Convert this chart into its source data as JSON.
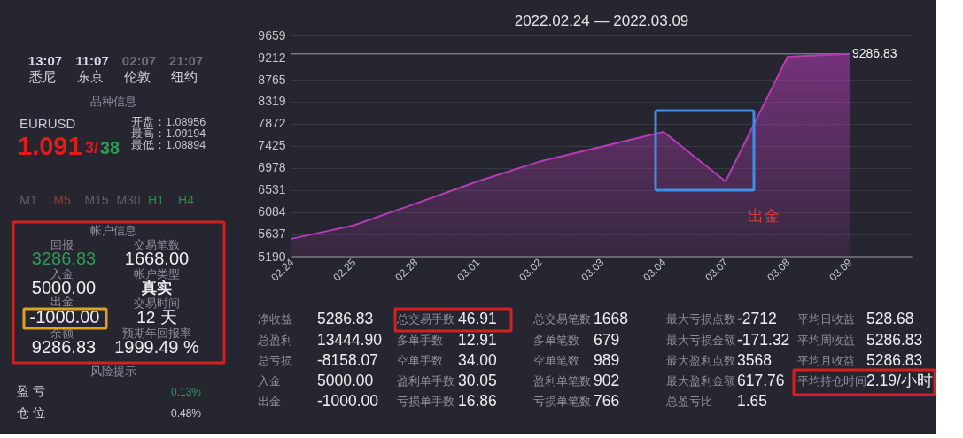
{
  "chart_data": [
    {
      "type": "other",
      "annotations": [
        "13:07",
        "11:07",
        "02:07",
        "21:07",
        "悉尼",
        "东京",
        "伦敦",
        "纽约",
        "品种信息",
        "EURUSD",
        "开盘：1.08956",
        "最高：1.09194",
        "最低：1.08894",
        "1.091",
        "3/",
        "38",
        "M1",
        "M5",
        "M15",
        "M30",
        "H1",
        "H4",
        "帐户信息",
        "回报",
        "3286.83",
        "交易笔数",
        "1668.00",
        "入金",
        "5000.00",
        "帐户类型",
        "真实",
        "出金",
        "-1000.00",
        "交易时间",
        "12 天",
        "余额",
        "9286.83",
        "预期年回报率",
        "1999.49 %",
        "风险提示",
        "盈 亏",
        "0.13%",
        "仓 位",
        "0.48%"
      ]
    },
    {
      "type": "area",
      "title": "2022.02.24 — 2022.03.09",
      "categories": [
        "02.24",
        "02.25",
        "02.28",
        "03.01",
        "03.02",
        "03.03",
        "03.04",
        "03.07",
        "03.08",
        "03.09"
      ],
      "series": [
        {
          "color": "#b43cb4",
          "values": [
            5550,
            5820,
            6260,
            6710,
            7110,
            7410,
            7710,
            6710,
            9230,
            9286.83
          ],
          "value_labels": [
            null,
            null,
            null,
            null,
            null,
            null,
            null,
            null,
            null,
            "9286.83"
          ]
        }
      ],
      "ylim": [
        5190,
        9659
      ],
      "yticks": [
        5190,
        5637,
        6084,
        6531,
        6978,
        7425,
        7872,
        8319,
        8765,
        9212,
        9659
      ],
      "grid": "y",
      "ref_lines": [
        {
          "axis": "y",
          "value": 9286.83,
          "color": "#a098ac"
        }
      ],
      "annotations": [
        {
          "text": "出金",
          "x": "03.07",
          "y": 6710
        }
      ]
    },
    {
      "type": "other",
      "annotations": [
        "净收益",
        "5286.83",
        "总盈利",
        "13444.90",
        "总亏损",
        "-8158.07",
        "入金",
        "5000.00",
        "出金",
        "-1000.00",
        "总交易手数",
        "46.91",
        "多单手数",
        "12.91",
        "空单手数",
        "34.00",
        "盈利单手数",
        "30.05",
        "亏损单手数",
        "16.86",
        "总交易笔数",
        "1668",
        "多单笔数",
        "679",
        "空单笔数",
        "989",
        "盈利单笔数",
        "902",
        "亏损单笔数",
        "766",
        "最大亏损点数",
        "-2712",
        "最大亏损金额",
        "-171.32",
        "最大盈利点数",
        "3568",
        "最大盈利金额",
        "617.76",
        "总盈亏比",
        "1.65",
        "平均日收益",
        "528.68",
        "平均周收益",
        "5286.83",
        "平均月收益",
        "5286.83",
        "平均持仓时间",
        "2.19/小时"
      ]
    }
  ]
}
